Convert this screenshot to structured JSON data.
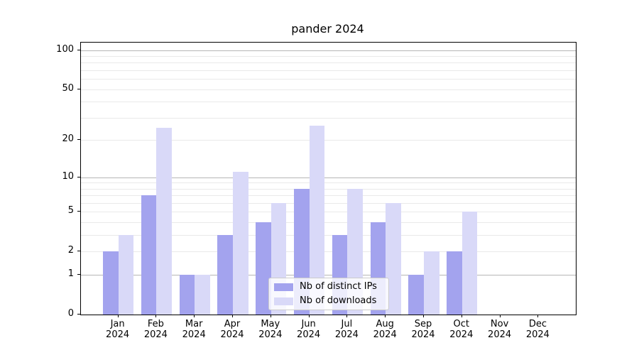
{
  "title": "pander 2024",
  "chart_data": {
    "type": "bar",
    "title": "pander 2024",
    "categories": [
      "Jan",
      "Feb",
      "Mar",
      "Apr",
      "May",
      "Jun",
      "Jul",
      "Aug",
      "Sep",
      "Oct",
      "Nov",
      "Dec"
    ],
    "year": "2024",
    "series": [
      {
        "name": "Nb of distinct IPs",
        "color": "#a3a3ee",
        "values": [
          2,
          7,
          1,
          3,
          4,
          8,
          3,
          4,
          1,
          2,
          0,
          0
        ]
      },
      {
        "name": "Nb of downloads",
        "color": "#d9d9f8",
        "values": [
          3,
          25,
          1,
          11,
          6,
          26,
          8,
          6,
          2,
          5,
          0,
          0
        ]
      }
    ],
    "xlabel": "",
    "ylabel": "",
    "yscale": "log1p",
    "ylim": [
      0,
      115
    ],
    "y_ticks": [
      0,
      1,
      2,
      5,
      10,
      20,
      50,
      100
    ],
    "y_major_gridlines": [
      1,
      10,
      100
    ],
    "y_minor_gridlines": [
      2,
      3,
      4,
      5,
      6,
      7,
      8,
      9,
      20,
      30,
      40,
      50,
      60,
      70,
      80,
      90
    ],
    "grid": true,
    "legend_position": "lower center",
    "plot_bg": "#ffffff",
    "axis_color": "#000000",
    "major_grid_color": "#b6b6b6",
    "minor_grid_color": "#e9e9e9"
  }
}
